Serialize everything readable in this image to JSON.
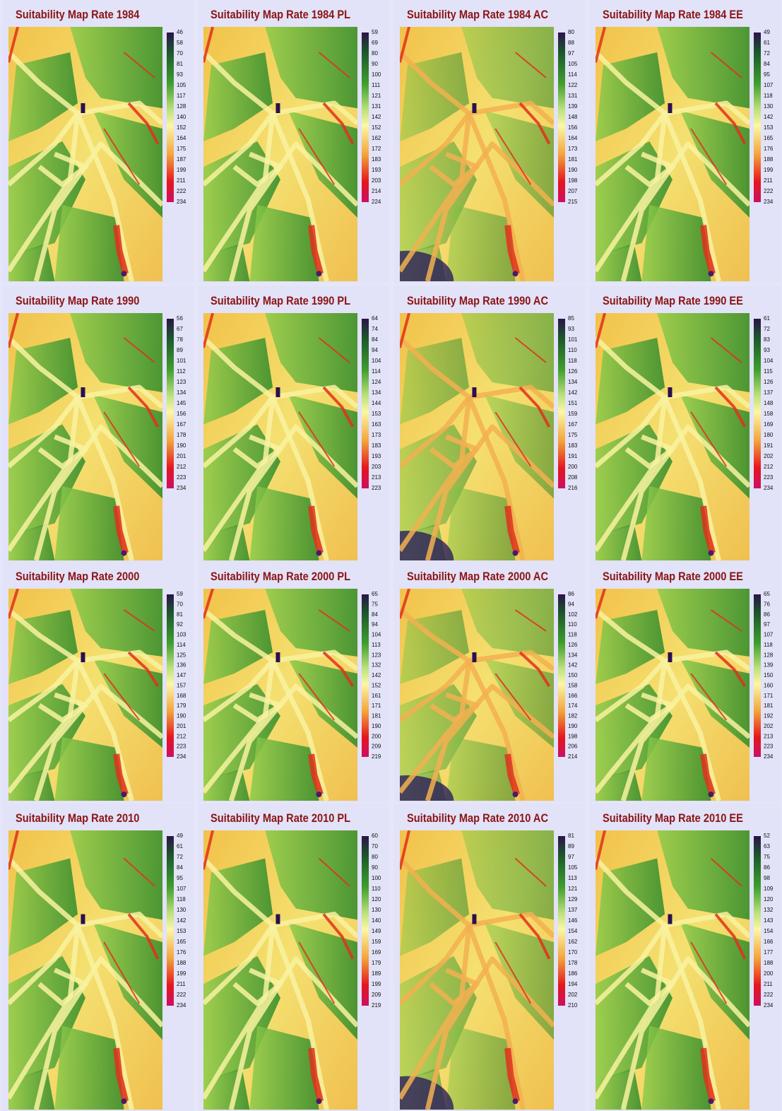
{
  "panels": [
    {
      "title": "Suitability Map Rate 1984",
      "legend": [
        46,
        58,
        70,
        81,
        93,
        105,
        117,
        128,
        140,
        152,
        164,
        175,
        187,
        199,
        211,
        222,
        234
      ]
    },
    {
      "title": "Suitability Map Rate 1984 PL",
      "legend": [
        59,
        69,
        80,
        90,
        100,
        111,
        121,
        131,
        142,
        152,
        162,
        172,
        183,
        193,
        203,
        214,
        224
      ]
    },
    {
      "title": "Suitability Map Rate 1984 AC",
      "legend": [
        80,
        88,
        97,
        105,
        114,
        122,
        131,
        139,
        148,
        156,
        164,
        173,
        181,
        190,
        198,
        207,
        215
      ]
    },
    {
      "title": "Suitability Map Rate 1984 EE",
      "legend": [
        49,
        61,
        72,
        84,
        95,
        107,
        118,
        130,
        142,
        153,
        165,
        176,
        188,
        199,
        211,
        222,
        234
      ]
    },
    {
      "title": "Suitability Map Rate 1990",
      "legend": [
        56,
        67,
        78,
        89,
        101,
        112,
        123,
        134,
        145,
        156,
        167,
        178,
        190,
        201,
        212,
        223,
        234
      ]
    },
    {
      "title": "Suitability Map Rate 1990 PL",
      "legend": [
        64,
        74,
        84,
        94,
        104,
        114,
        124,
        134,
        144,
        153,
        163,
        173,
        183,
        193,
        203,
        213,
        223
      ]
    },
    {
      "title": "Suitability Map Rate 1990 AC",
      "legend": [
        85,
        93,
        101,
        110,
        118,
        126,
        134,
        142,
        151,
        159,
        167,
        175,
        183,
        191,
        200,
        208,
        216
      ]
    },
    {
      "title": "Suitability Map Rate 1990 EE",
      "legend": [
        61,
        72,
        83,
        93,
        104,
        115,
        126,
        137,
        148,
        158,
        169,
        180,
        191,
        202,
        212,
        223,
        234
      ]
    },
    {
      "title": "Suitability Map Rate 2000",
      "legend": [
        59,
        70,
        81,
        92,
        103,
        114,
        125,
        136,
        147,
        157,
        168,
        179,
        190,
        201,
        212,
        223,
        234
      ]
    },
    {
      "title": "Suitability Map Rate 2000 PL",
      "legend": [
        65,
        75,
        84,
        94,
        104,
        113,
        123,
        132,
        142,
        152,
        161,
        171,
        181,
        190,
        200,
        209,
        219
      ]
    },
    {
      "title": "Suitability Map Rate 2000 AC",
      "legend": [
        86,
        94,
        102,
        110,
        118,
        126,
        134,
        142,
        150,
        158,
        166,
        174,
        182,
        190,
        198,
        206,
        214
      ]
    },
    {
      "title": "Suitability Map Rate 2000 EE",
      "legend": [
        65,
        76,
        86,
        97,
        107,
        118,
        128,
        139,
        150,
        160,
        171,
        181,
        192,
        202,
        213,
        223,
        234
      ]
    },
    {
      "title": "Suitability Map Rate 2010",
      "legend": [
        49,
        61,
        72,
        84,
        95,
        107,
        118,
        130,
        142,
        153,
        165,
        176,
        188,
        199,
        211,
        222,
        234
      ]
    },
    {
      "title": "Suitability Map Rate 2010 PL",
      "legend": [
        60,
        70,
        80,
        90,
        100,
        110,
        120,
        130,
        140,
        149,
        159,
        169,
        179,
        189,
        199,
        209,
        219
      ]
    },
    {
      "title": "Suitability Map Rate 2010 AC",
      "legend": [
        81,
        89,
        97,
        105,
        113,
        121,
        129,
        137,
        146,
        154,
        162,
        170,
        178,
        186,
        194,
        202,
        210
      ]
    },
    {
      "title": "Suitability Map Rate 2010 EE",
      "legend": [
        52,
        63,
        75,
        86,
        98,
        109,
        120,
        132,
        143,
        154,
        166,
        177,
        188,
        200,
        211,
        222,
        234
      ]
    }
  ]
}
